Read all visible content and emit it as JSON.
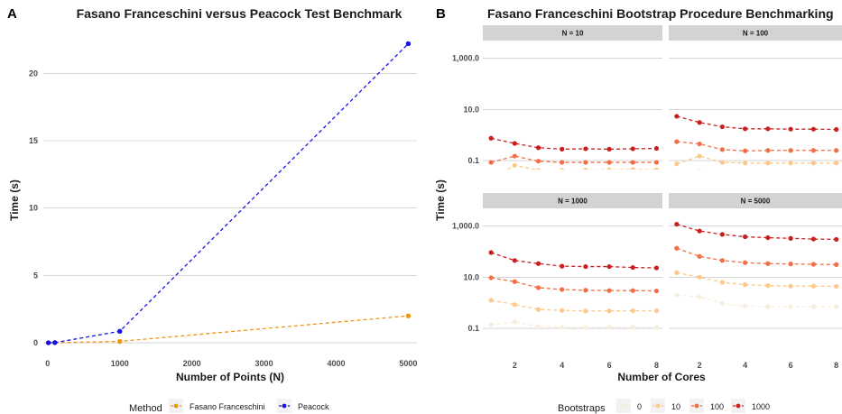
{
  "panels": {
    "a_label": "A",
    "b_label": "B"
  },
  "colors": {
    "fasano": "#f0960f",
    "peacock": "#1414e6",
    "b0": "#f6eddc",
    "b10": "#fdc98a",
    "b100": "#f26e45",
    "b1000": "#c9201f",
    "grid": "#bdbdbd",
    "strip": "#d3d3d3"
  },
  "chart_data": [
    {
      "type": "line",
      "title": "Fasano Franceschini versus Peacock Test Benchmark",
      "xlabel": "Number of Points (N)",
      "ylabel": "Time (s)",
      "xlim": [
        -60,
        5120
      ],
      "ylim": [
        -0.4,
        22.9
      ],
      "x_ticks": [
        0,
        1000,
        2000,
        3000,
        4000,
        5000
      ],
      "y_ticks": [
        0,
        5,
        10,
        15,
        20
      ],
      "grid": "horizontal",
      "legend": {
        "title": "Method",
        "position": "bottom",
        "entries": [
          "Fasano Franceschini",
          "Peacock"
        ]
      },
      "series": [
        {
          "name": "Fasano Franceschini",
          "x": [
            10,
            100,
            1000,
            5000
          ],
          "y": [
            0.0,
            0.01,
            0.1,
            2.0
          ]
        },
        {
          "name": "Peacock",
          "x": [
            10,
            100,
            1000,
            5000
          ],
          "y": [
            0.0,
            0.01,
            0.85,
            22.2
          ]
        }
      ]
    },
    {
      "type": "line",
      "title": "Fasano Franceschini Bootstrap Procedure Benchmarking",
      "xlabel": "Number of Cores",
      "ylabel": "Time (s)",
      "y_scale": "log10",
      "ylim_log10": [
        -1.35,
        3.55
      ],
      "y_ticks": [
        0.1,
        10,
        1000
      ],
      "y_tick_labels": [
        "0.1",
        "10.0",
        "1,000.0"
      ],
      "xlim": [
        0.65,
        8.25
      ],
      "x_ticks": [
        2,
        4,
        6,
        8
      ],
      "grid": "horizontal",
      "legend": {
        "title": "Bootstraps",
        "position": "bottom",
        "entries": [
          "0",
          "10",
          "100",
          "1000"
        ]
      },
      "x": [
        1,
        2,
        3,
        4,
        5,
        6,
        7,
        8
      ],
      "facets": [
        {
          "label": "N = 10",
          "series": [
            {
              "name": "0",
              "values": [
                0.011,
                0.028,
                0.029,
                0.029,
                0.029,
                0.03,
                0.03,
                0.031
              ]
            },
            {
              "name": "10",
              "values": [
                0.02,
                0.065,
                0.042,
                0.042,
                0.043,
                0.044,
                0.045,
                0.044
              ]
            },
            {
              "name": "100",
              "values": [
                0.085,
                0.15,
                0.095,
                0.085,
                0.085,
                0.085,
                0.085,
                0.085
              ]
            },
            {
              "name": "1000",
              "values": [
                0.75,
                0.47,
                0.32,
                0.28,
                0.29,
                0.28,
                0.29,
                0.3
              ]
            }
          ]
        },
        {
          "label": "N = 100",
          "series": [
            {
              "name": "0",
              "values": [
                0.02,
                0.04,
                0.035,
                0.035,
                0.036,
                0.036,
                0.037,
                0.038
              ]
            },
            {
              "name": "10",
              "values": [
                0.075,
                0.15,
                0.085,
                0.08,
                0.08,
                0.08,
                0.08,
                0.08
              ]
            },
            {
              "name": "100",
              "values": [
                0.55,
                0.45,
                0.27,
                0.24,
                0.25,
                0.25,
                0.25,
                0.25
              ]
            },
            {
              "name": "1000",
              "values": [
                5.4,
                3.1,
                2.1,
                1.75,
                1.75,
                1.7,
                1.7,
                1.65
              ]
            }
          ]
        },
        {
          "label": "N = 1000",
          "series": [
            {
              "name": "0",
              "values": [
                0.14,
                0.18,
                0.12,
                0.11,
                0.11,
                0.11,
                0.11,
                0.11
              ]
            },
            {
              "name": "10",
              "values": [
                1.25,
                0.85,
                0.55,
                0.5,
                0.48,
                0.48,
                0.49,
                0.49
              ]
            },
            {
              "name": "100",
              "values": [
                9.5,
                6.7,
                3.9,
                3.3,
                3.1,
                3.0,
                3.0,
                2.9
              ]
            },
            {
              "name": "1000",
              "values": [
                92,
                45,
                34,
                27,
                26,
                26,
                24,
                23
              ]
            }
          ]
        },
        {
          "label": "N = 5000",
          "series": [
            {
              "name": "0",
              "values": [
                2.0,
                1.7,
                0.95,
                0.75,
                0.72,
                0.71,
                0.7,
                0.69
              ]
            },
            {
              "name": "10",
              "values": [
                15,
                10,
                6.3,
                5.1,
                4.7,
                4.5,
                4.5,
                4.4
              ]
            },
            {
              "name": "100",
              "values": [
                135,
                65,
                45,
                37,
                34,
                33,
                32,
                31
              ]
            },
            {
              "name": "1000",
              "values": [
                1180,
                640,
                470,
                380,
                350,
                330,
                310,
                300
              ]
            }
          ]
        }
      ]
    }
  ]
}
